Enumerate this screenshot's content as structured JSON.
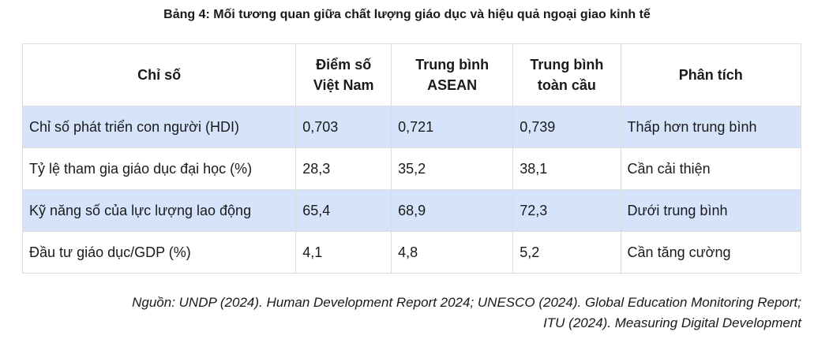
{
  "title": "Bảng 4: Mối tương quan giữa chất lượng giáo dục và hiệu quả ngoại giao kinh tế",
  "table": {
    "headers": [
      [
        "Chỉ số"
      ],
      [
        "Điểm số",
        "Việt Nam"
      ],
      [
        "Trung bình",
        "ASEAN"
      ],
      [
        "Trung bình",
        "toàn cầu"
      ],
      [
        "Phân tích"
      ]
    ],
    "rows": [
      [
        "Chỉ số phát triển con người (HDI)",
        "0,703",
        "0,721",
        "0,739",
        "Thấp hơn trung bình"
      ],
      [
        "Tỷ lệ tham gia giáo dục đại học (%)",
        "28,3",
        "35,2",
        "38,1",
        "Cần cải thiện"
      ],
      [
        "Kỹ năng số của lực lượng lao động",
        "65,4",
        "68,9",
        "72,3",
        "Dưới trung bình"
      ],
      [
        "Đầu tư giáo dục/GDP (%)",
        "4,1",
        "4,8",
        "5,2",
        "Cần tăng cường"
      ]
    ],
    "shaded_color": "#d6e4fb"
  },
  "source": [
    "Nguồn: UNDP (2024). Human Development Report 2024; UNESCO (2024). Global Education Monitoring Report;",
    "ITU (2024). Measuring Digital Development"
  ]
}
